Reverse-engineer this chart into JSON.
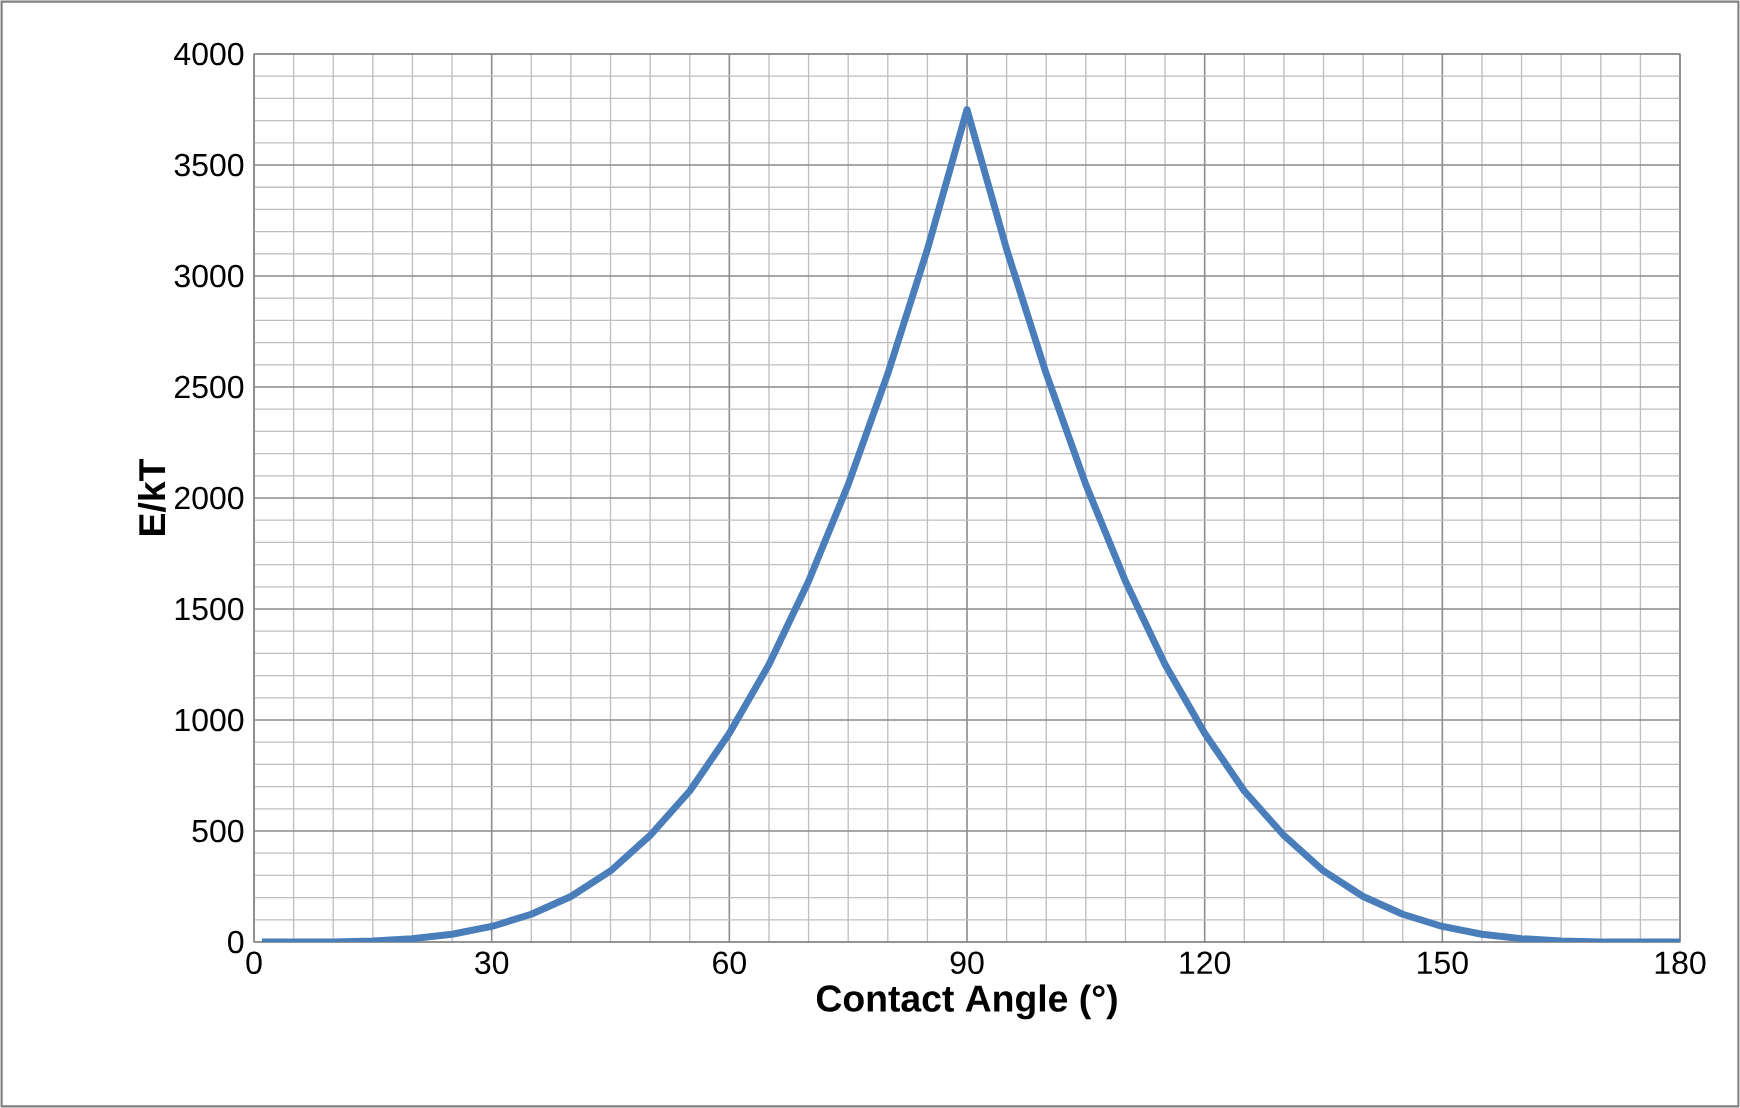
{
  "chart_data": {
    "type": "line",
    "xlabel": "Contact Angle (°)",
    "ylabel": "E/kT",
    "x": [
      1,
      5,
      10,
      15,
      20,
      25,
      30,
      35,
      40,
      45,
      50,
      55,
      60,
      65,
      70,
      75,
      80,
      85,
      90,
      95,
      100,
      105,
      110,
      115,
      120,
      125,
      130,
      135,
      140,
      145,
      150,
      155,
      160,
      165,
      170,
      175,
      180
    ],
    "series": [
      {
        "color": "#4a7ebb",
        "values": [
          0,
          0,
          0,
          5,
          15,
          35,
          70,
          125,
          205,
          320,
          480,
          680,
          940,
          1250,
          1625,
          2060,
          2560,
          3120,
          3750,
          3120,
          2560,
          2060,
          1625,
          1250,
          940,
          680,
          480,
          320,
          205,
          125,
          70,
          35,
          15,
          5,
          0,
          0,
          0
        ]
      }
    ],
    "xlim": [
      0,
      180
    ],
    "ylim": [
      0,
      4000
    ],
    "xticks": [
      0,
      30,
      60,
      90,
      120,
      150,
      180
    ],
    "yticks": [
      0,
      500,
      1000,
      1500,
      2000,
      2500,
      3000,
      3500,
      4000
    ],
    "grid": true,
    "marker": "none",
    "line_style": "solid"
  }
}
